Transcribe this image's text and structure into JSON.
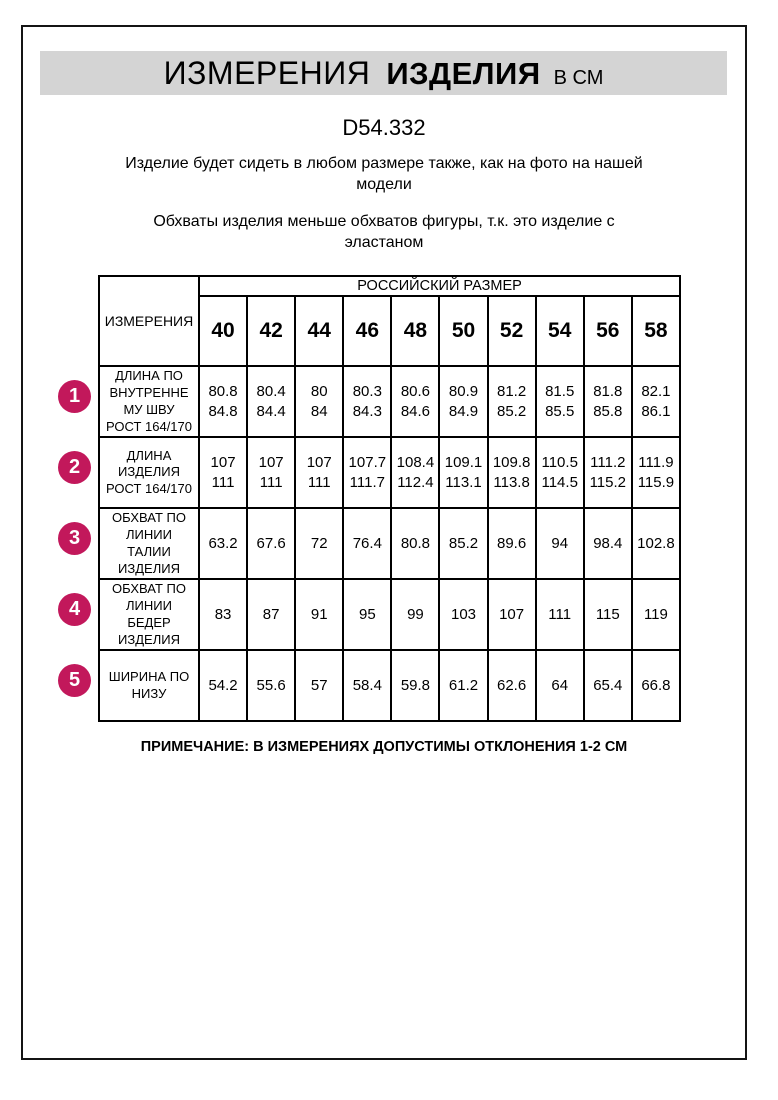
{
  "header": {
    "title_main": "ИЗМЕРЕНИЯ",
    "title_secondary": "ИЗДЕЛИЯ",
    "title_unit": "В СМ",
    "model_code": "D54.332"
  },
  "intro": {
    "fit_note": "Изделие будет сидеть в любом размере также, как на фото на нашей\nмодели",
    "elastane_note": "Обхваты изделия меньше обхватов фигуры, т.к. это изделие с\nэластаном"
  },
  "table": {
    "measurements_header": "ИЗМЕРЕНИЯ",
    "size_group_header": "РОССИЙСКИЙ РАЗМЕР",
    "sizes": [
      "40",
      "42",
      "44",
      "46",
      "48",
      "50",
      "52",
      "54",
      "56",
      "58"
    ],
    "rows": [
      {
        "num": "1",
        "label": "ДЛИНА ПО\nВНУТРЕННЕ\nМУ ШВУ\nРОСТ 164/170",
        "values": [
          "80.8\n84.8",
          "80.4\n84.4",
          "80\n84",
          "80.3\n84.3",
          "80.6\n84.6",
          "80.9\n84.9",
          "81.2\n85.2",
          "81.5\n85.5",
          "81.8\n85.8",
          "82.1\n86.1"
        ]
      },
      {
        "num": "2",
        "label": "ДЛИНА\nИЗДЕЛИЯ\nРОСТ 164/170",
        "values": [
          "107\n111",
          "107\n111",
          "107\n111",
          "107.7\n111.7",
          "108.4\n112.4",
          "109.1\n113.1",
          "109.8\n113.8",
          "110.5\n114.5",
          "111.2\n115.2",
          "111.9\n115.9"
        ]
      },
      {
        "num": "3",
        "label": "ОБХВАТ ПО\nЛИНИИ\nТАЛИИ\nИЗДЕЛИЯ",
        "values": [
          "63.2",
          "67.6",
          "72",
          "76.4",
          "80.8",
          "85.2",
          "89.6",
          "94",
          "98.4",
          "102.8"
        ]
      },
      {
        "num": "4",
        "label": "ОБХВАТ ПО\nЛИНИИ\nБЕДЕР\nИЗДЕЛИЯ",
        "values": [
          "83",
          "87",
          "91",
          "95",
          "99",
          "103",
          "107",
          "111",
          "115",
          "119"
        ]
      },
      {
        "num": "5",
        "label": "ШИРИНА ПО\nНИЗУ",
        "values": [
          "54.2",
          "55.6",
          "57",
          "58.4",
          "59.8",
          "61.2",
          "62.6",
          "64",
          "65.4",
          "66.8"
        ]
      }
    ]
  },
  "note": "ПРИМЕЧАНИЕ: В ИЗМЕРЕНИЯХ ДОПУСТИМЫ ОТКЛОНЕНИЯ 1-2 СМ",
  "colors": {
    "badge": "#c2185b",
    "title_bar_bg": "#d4d4d4",
    "table_border": "#000000"
  }
}
